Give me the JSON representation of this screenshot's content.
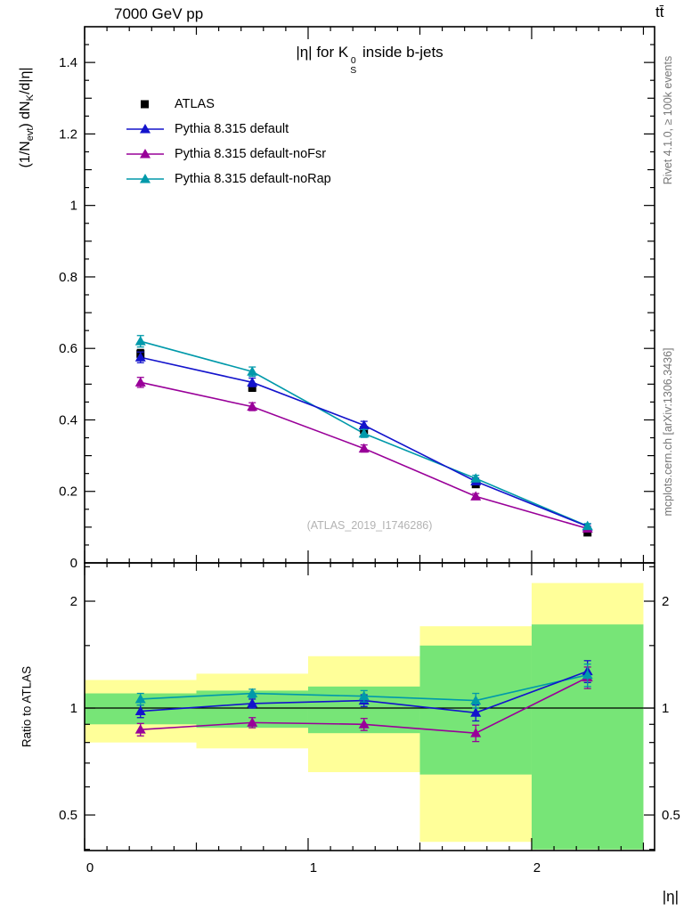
{
  "header": {
    "left": "7000 GeV pp",
    "right": "tt̄"
  },
  "title": {
    "pre": "|η| for K",
    "sup": "0",
    "sub": "S",
    "post": " inside b-jets"
  },
  "axes": {
    "y_label": {
      "p1": "(1/N",
      "s1": "evt",
      "p2": ") dN",
      "s2": "K",
      "p3": "/d|η|"
    },
    "ratio_y_label": "Ratio to ATLAS",
    "x_label": "|η|"
  },
  "side_notes": {
    "top": "Rivet 4.1.0, ≥ 100k events",
    "bottom": "mcplots.cern.ch [arXiv:1306.3436]"
  },
  "watermark": "(ATLAS_2019_I1746286)",
  "legend": {
    "items": [
      {
        "label": "ATLAS",
        "marker": "square",
        "color": "#000000",
        "line": false
      },
      {
        "label": "Pythia 8.315 default",
        "marker": "triangle",
        "color": "#1313cc",
        "line": true
      },
      {
        "label": "Pythia 8.315 default-noFsr",
        "marker": "triangle",
        "color": "#990099",
        "line": true
      },
      {
        "label": "Pythia 8.315 default-noRap",
        "marker": "triangle",
        "color": "#0099aa",
        "line": true
      }
    ]
  },
  "chart_data": {
    "type": "line",
    "x_range": [
      0,
      2.55
    ],
    "x": [
      0.25,
      0.75,
      1.25,
      1.75,
      2.25
    ],
    "x_ticks": {
      "values": [
        0,
        1,
        2
      ],
      "labels": [
        "0",
        "1",
        "2"
      ]
    },
    "main_panel": {
      "y_range": [
        0,
        1.5
      ],
      "y_ticks": {
        "values": [
          0,
          0.2,
          0.4,
          0.6,
          0.8,
          1,
          1.2,
          1.4
        ],
        "labels": [
          "0",
          "0.2",
          "0.4",
          "0.6",
          "0.8",
          "1",
          "1.2",
          "1.4"
        ]
      },
      "series": [
        {
          "name": "ATLAS",
          "marker": "square",
          "color": "#000000",
          "line": false,
          "values": [
            0.585,
            0.49,
            0.372,
            0.22,
            0.085
          ],
          "errors": [
            0.012,
            0.01,
            0.009,
            0.007,
            0.006
          ]
        },
        {
          "name": "Pythia 8.315 default",
          "marker": "triangle",
          "color": "#1313cc",
          "line": true,
          "values": [
            0.575,
            0.505,
            0.385,
            0.228,
            0.102
          ],
          "errors": [
            0.015,
            0.012,
            0.011,
            0.009,
            0.007
          ]
        },
        {
          "name": "Pythia 8.315 default-noFsr",
          "marker": "triangle",
          "color": "#990099",
          "line": true,
          "values": [
            0.505,
            0.437,
            0.32,
            0.186,
            0.096
          ],
          "errors": [
            0.014,
            0.011,
            0.01,
            0.008,
            0.007
          ]
        },
        {
          "name": "Pythia 8.315 default-noRap",
          "marker": "triangle",
          "color": "#0099aa",
          "line": true,
          "values": [
            0.62,
            0.535,
            0.362,
            0.236,
            0.103
          ],
          "errors": [
            0.016,
            0.013,
            0.011,
            0.009,
            0.007
          ]
        }
      ]
    },
    "ratio_panel": {
      "scale": "log",
      "y_range": [
        0.397,
        2.564
      ],
      "y_ticks": {
        "values": [
          0.5,
          1,
          2
        ],
        "labels": [
          "0.5",
          "1",
          "2"
        ]
      },
      "y_minor_ticks": [
        0.4,
        0.6,
        0.7,
        0.8,
        0.9,
        1.5,
        2.5
      ],
      "reference_line": 1,
      "band_colors": {
        "outer": "#ffff99",
        "inner": "#77e577"
      },
      "bands": [
        {
          "x0": 0,
          "x1": 0.5,
          "outer": [
            0.8,
            1.2
          ],
          "inner": [
            0.9,
            1.1
          ]
        },
        {
          "x0": 0.5,
          "x1": 1.0,
          "outer": [
            0.77,
            1.25
          ],
          "inner": [
            0.88,
            1.12
          ]
        },
        {
          "x0": 1.0,
          "x1": 1.5,
          "outer": [
            0.66,
            1.4
          ],
          "inner": [
            0.85,
            1.15
          ]
        },
        {
          "x0": 1.5,
          "x1": 2.0,
          "outer": [
            0.42,
            1.7
          ],
          "inner": [
            0.65,
            1.5
          ]
        },
        {
          "x0": 2.0,
          "x1": 2.5,
          "outer": [
            0.4,
            2.25
          ],
          "inner": [
            0.4,
            1.72
          ]
        }
      ],
      "series": [
        {
          "name": "Pythia 8.315 default",
          "marker": "triangle",
          "color": "#1313cc",
          "line": true,
          "values": [
            0.98,
            1.03,
            1.05,
            0.97,
            1.27
          ],
          "errors": [
            0.04,
            0.03,
            0.04,
            0.05,
            0.09
          ]
        },
        {
          "name": "Pythia 8.315 default-noFsr",
          "marker": "triangle",
          "color": "#990099",
          "line": true,
          "values": [
            0.87,
            0.91,
            0.9,
            0.85,
            1.22
          ],
          "errors": [
            0.035,
            0.03,
            0.035,
            0.045,
            0.085
          ]
        },
        {
          "name": "Pythia 8.315 default-noRap",
          "marker": "triangle",
          "color": "#0099aa",
          "line": true,
          "values": [
            1.06,
            1.1,
            1.08,
            1.05,
            1.24
          ],
          "errors": [
            0.04,
            0.03,
            0.04,
            0.05,
            0.09
          ]
        }
      ]
    }
  }
}
